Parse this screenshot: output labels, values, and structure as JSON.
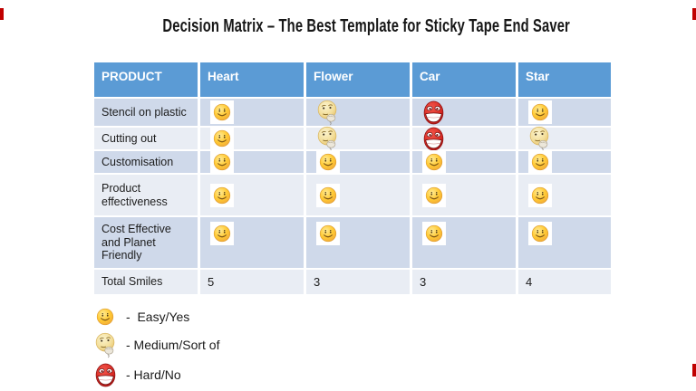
{
  "title": "Decision Matrix – The Best Template for Sticky Tape End Saver",
  "colors": {
    "header_bg": "#5B9BD5",
    "row_dark": "#CFD9EA",
    "row_light": "#E9EDF4",
    "accent_red": "#C00000",
    "easy_yellow": "#FFC933",
    "hard_red": "#D92B24"
  },
  "matrix": {
    "columns": [
      "PRODUCT",
      "Heart",
      "Flower",
      "Car",
      "Star"
    ],
    "rows": [
      {
        "label": "Stencil on plastic",
        "cells": [
          "easy",
          "medium",
          "hard",
          "easy"
        ]
      },
      {
        "label": "Cutting out",
        "cells": [
          "easy",
          "medium",
          "hard",
          "medium"
        ]
      },
      {
        "label": "Customisation",
        "cells": [
          "easy",
          "easy",
          "easy",
          "easy"
        ]
      },
      {
        "label": "Product\neffectiveness",
        "cells": [
          "easy",
          "easy",
          "easy",
          "easy"
        ]
      },
      {
        "label": "Cost Effective\nand Planet\nFriendly",
        "cells": [
          "easy",
          "easy",
          "easy",
          "easy"
        ]
      }
    ],
    "totals": {
      "label": "Total Smiles",
      "values": [
        "5",
        "3",
        "3",
        "4"
      ]
    }
  },
  "legend": [
    {
      "icon": "easy",
      "label": "-  Easy/Yes"
    },
    {
      "icon": "medium",
      "label": "- Medium/Sort of"
    },
    {
      "icon": "hard",
      "label": "- Hard/No"
    }
  ]
}
